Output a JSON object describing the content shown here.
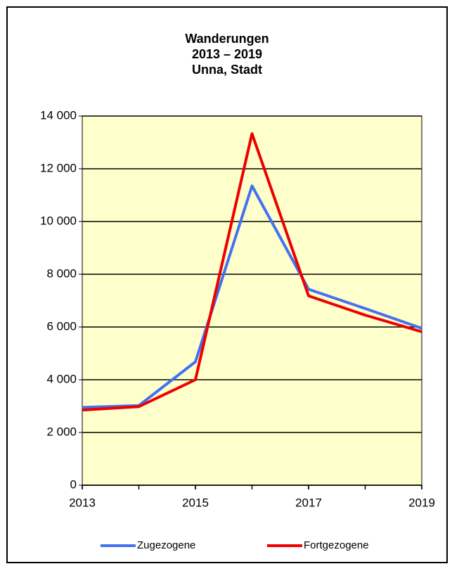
{
  "chart_data": {
    "type": "line",
    "title": [
      "Wanderungen",
      "2013 – 2019",
      "Unna, Stadt"
    ],
    "x": [
      2013,
      2014,
      2015,
      2016,
      2017,
      2018,
      2019
    ],
    "series": [
      {
        "name": "Zugezogene",
        "color": "#4472ee",
        "values": [
          2950,
          3020,
          4680,
          11350,
          7430,
          6700,
          5950
        ]
      },
      {
        "name": "Fortgezogene",
        "color": "#ee0000",
        "values": [
          2850,
          2980,
          4000,
          13330,
          7180,
          6450,
          5820
        ]
      }
    ],
    "xlim": [
      2013,
      2019
    ],
    "xticks": [
      2013,
      2015,
      2017,
      2019
    ],
    "ylim": [
      0,
      14000
    ],
    "yticks": [
      0,
      {
        "value": 2000,
        "label": "2 000"
      },
      {
        "value": 4000,
        "label": "4 000"
      },
      {
        "value": 6000,
        "label": "6 000"
      },
      {
        "value": 8000,
        "label": "8 000"
      },
      {
        "value": 10000,
        "label": "10 000"
      },
      {
        "value": 12000,
        "label": "12 000"
      },
      {
        "value": 14000,
        "label": "14 000"
      }
    ],
    "grid": true,
    "plot_background": "#ffffcc"
  }
}
